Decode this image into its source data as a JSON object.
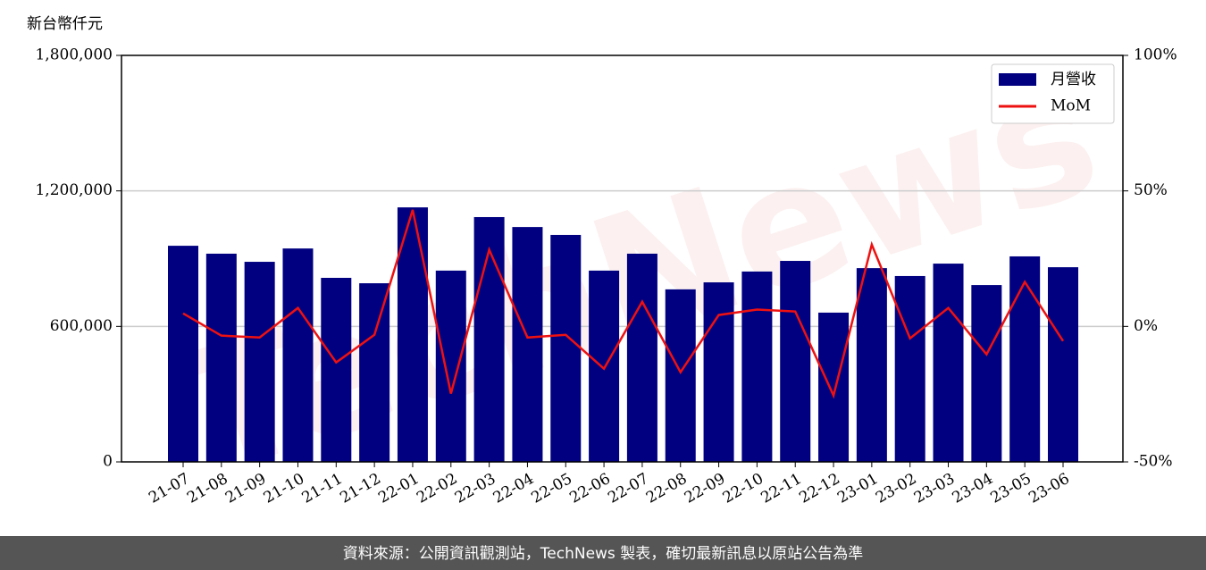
{
  "chart_data": {
    "type": "bar_line",
    "ylabel": "新台幣仟元",
    "watermark": "TechNews",
    "footer": "資料來源：公開資訊觀測站，TechNews 製表，確切最新訊息以原站公告為準",
    "categories": [
      "21-07",
      "21-08",
      "21-09",
      "21-10",
      "21-11",
      "21-12",
      "22-01",
      "22-02",
      "22-03",
      "22-04",
      "22-05",
      "22-06",
      "22-07",
      "22-08",
      "22-09",
      "22-10",
      "22-11",
      "22-12",
      "23-01",
      "23-02",
      "23-03",
      "23-04",
      "23-05",
      "23-06"
    ],
    "series": [
      {
        "name": "月營收",
        "color": "#000080",
        "type": "bar",
        "values": [
          957000,
          922000,
          886000,
          945000,
          815000,
          791000,
          1127000,
          847000,
          1084000,
          1040000,
          1005000,
          847000,
          922000,
          764000,
          795000,
          843000,
          890000,
          661000,
          858000,
          823000,
          878000,
          783000,
          910000,
          862000
        ]
      },
      {
        "name": "MoM",
        "color": "#ee1111",
        "type": "line",
        "axis": "y2",
        "values": [
          4.8,
          -3.4,
          -4.1,
          6.8,
          -13.3,
          -3.1,
          43,
          -24.8,
          28.3,
          -4.1,
          -3.1,
          -15.6,
          9.1,
          -16.9,
          4.2,
          6.2,
          5.5,
          -25.5,
          30.2,
          -4.4,
          6.8,
          -10.3,
          16.4,
          -5.4
        ]
      }
    ],
    "ylim": [
      0,
      1800000
    ],
    "yticks": [
      0,
      {
        "value": 600000,
        "label": "600,000"
      },
      {
        "value": 1200000,
        "label": "1,200,000"
      },
      {
        "value": 1800000,
        "label": "1,800,000"
      }
    ],
    "y2lim": [
      -50,
      100
    ],
    "y2ticks": [
      {
        "value": -50,
        "label": "-50%"
      },
      {
        "value": 0,
        "label": "0%"
      },
      {
        "value": 50,
        "label": "50%"
      },
      {
        "value": 100,
        "label": "100%"
      }
    ],
    "grid": true,
    "legend": "upper right"
  }
}
